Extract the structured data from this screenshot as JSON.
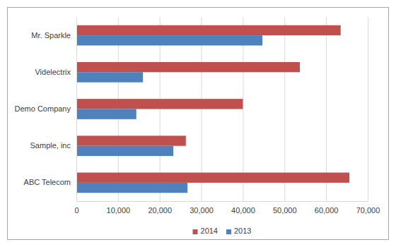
{
  "chart_data": {
    "type": "bar",
    "orientation": "horizontal",
    "categories": [
      "ABC Telecom",
      "Sample, inc",
      "Demo Company",
      "Videlectrix",
      "Mr. Sparkle"
    ],
    "series": [
      {
        "name": "2014",
        "color": "#c0504d",
        "values": [
          65600,
          26300,
          40000,
          53700,
          63500
        ]
      },
      {
        "name": "2013",
        "color": "#4f81bd",
        "values": [
          26700,
          23300,
          14400,
          16000,
          44700
        ]
      }
    ],
    "xlim": [
      0,
      70000
    ],
    "xticks": [
      0,
      {
        "value": 10000,
        "label": "10,000"
      },
      {
        "value": 20000,
        "label": "20,000"
      },
      {
        "value": 30000,
        "label": "30,000"
      },
      {
        "value": 40000,
        "label": "40,000"
      },
      {
        "value": 50000,
        "label": "50,000"
      },
      {
        "value": 60000,
        "label": "60,000"
      },
      {
        "value": 70000,
        "label": "70,000"
      }
    ],
    "grid": true,
    "legend": "bottom"
  }
}
